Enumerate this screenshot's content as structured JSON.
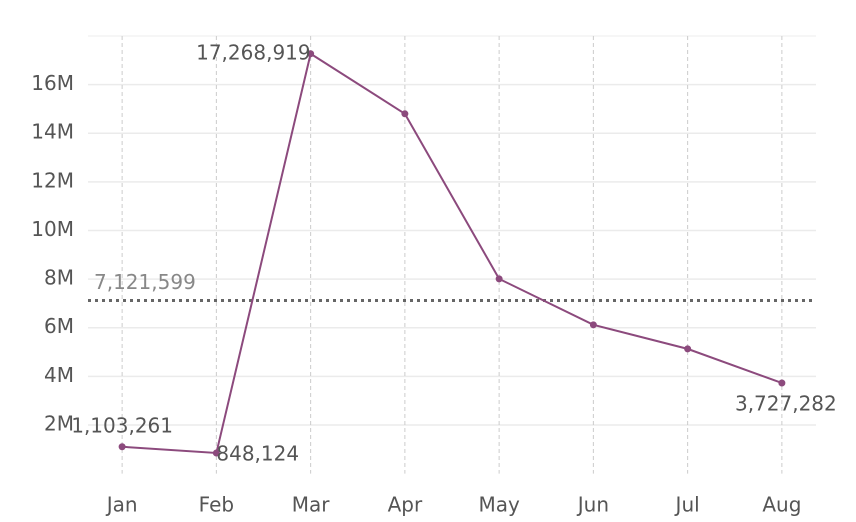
{
  "chart_data": {
    "type": "line",
    "categories": [
      "Jan",
      "Feb",
      "Mar",
      "Apr",
      "May",
      "Jun",
      "Jul",
      "Aug"
    ],
    "series": [
      {
        "color": "#8c4a7d",
        "values": [
          1103261,
          848124,
          17268919,
          14800000,
          8010000,
          6120000,
          5130000,
          3727282
        ],
        "value_labels": [
          "1,103,261",
          "848,124",
          "17,268,919",
          null,
          null,
          null,
          null,
          "3,727,282"
        ]
      }
    ],
    "reference_line": {
      "value": 7121599,
      "label": "7,121,599"
    },
    "ylim": [
      0,
      18000000
    ],
    "yticks": [
      {
        "value": 2000000,
        "label": "2M"
      },
      {
        "value": 4000000,
        "label": "4M"
      },
      {
        "value": 6000000,
        "label": "6M"
      },
      {
        "value": 8000000,
        "label": "8M"
      },
      {
        "value": 10000000,
        "label": "10M"
      },
      {
        "value": 12000000,
        "label": "12M"
      },
      {
        "value": 14000000,
        "label": "14M"
      },
      {
        "value": 16000000,
        "label": "16M"
      }
    ],
    "grid": true
  }
}
